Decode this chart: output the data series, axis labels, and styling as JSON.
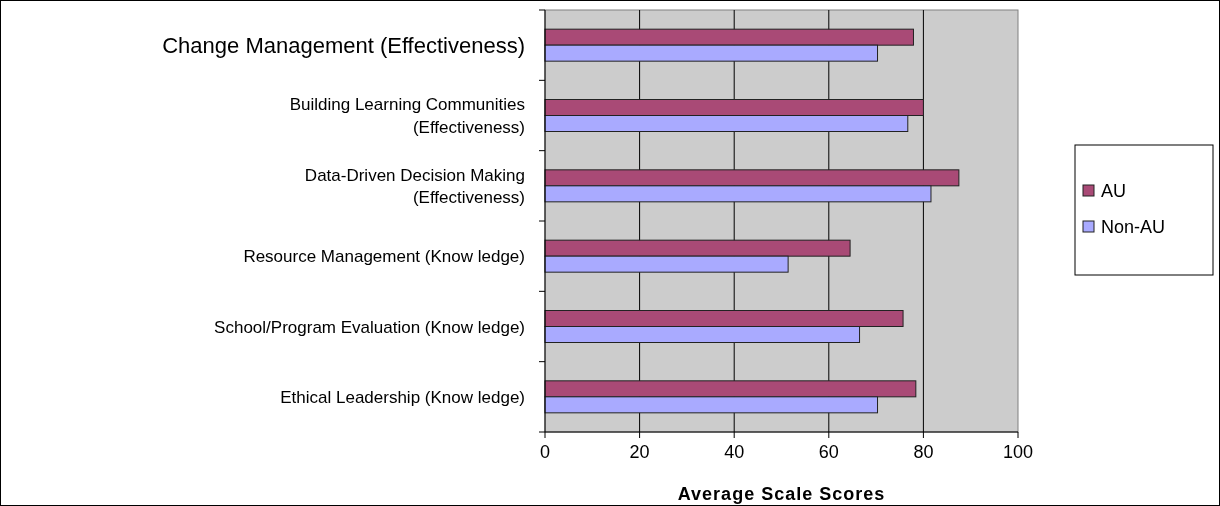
{
  "chart_data": {
    "type": "bar",
    "orientation": "horizontal",
    "xlabel": "Average Scale Scores",
    "categories": [
      "Change Management (Effectiveness)",
      "Building Learning Communities (Effectiveness)",
      "Data-Driven Decision Making (Effectiveness)",
      "Resource Management (Know ledge)",
      "School/Program Evaluation (Know ledge)",
      "Ethical Leadership (Know ledge)"
    ],
    "series": [
      {
        "name": "AU",
        "color": "#a94a76",
        "values": [
          77.9,
          80.0,
          87.5,
          64.5,
          75.7,
          78.4
        ]
      },
      {
        "name": "Non-AU",
        "color": "#a9aaff",
        "values": [
          70.3,
          76.7,
          81.6,
          51.4,
          66.5,
          70.3
        ]
      }
    ],
    "xlim": [
      0,
      100
    ],
    "xticks": [
      0,
      20,
      40,
      60,
      80,
      100
    ],
    "grid": "x",
    "legend": "right"
  }
}
